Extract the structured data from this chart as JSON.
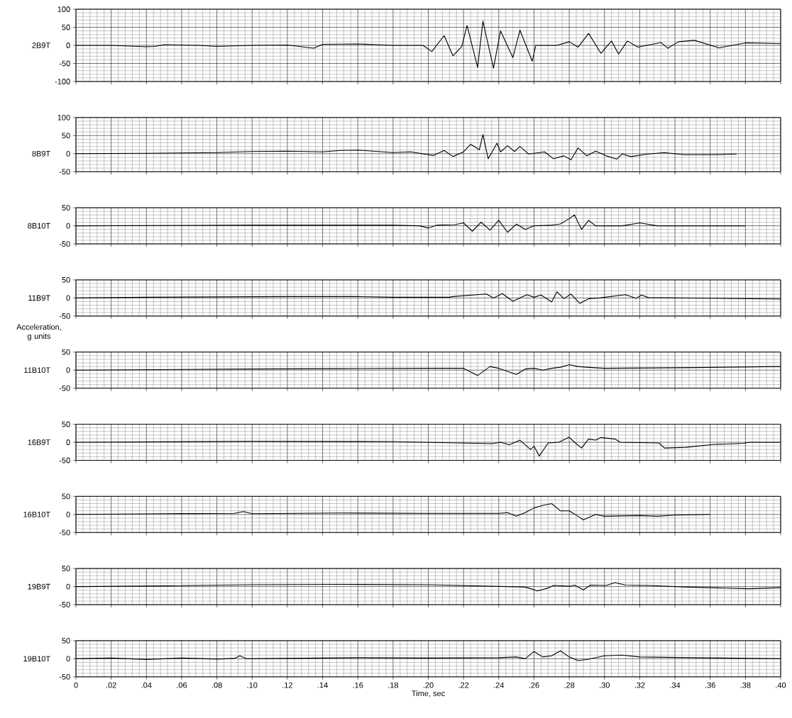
{
  "chart_data": [
    {
      "type": "line",
      "ylabel": "2B9T",
      "color": "#000000",
      "line_style": "solid",
      "grid": true,
      "tick_labels": "y",
      "xlim": [
        0,
        0.4
      ],
      "ylim": [
        -100,
        100
      ],
      "yticks": [
        -100,
        -50,
        0,
        50,
        100
      ],
      "xticks": [
        0,
        0.02,
        0.04,
        0.06,
        0.08,
        0.1,
        0.12,
        0.14,
        0.16,
        0.18,
        0.2,
        0.22,
        0.24,
        0.26,
        0.28,
        0.3,
        0.32,
        0.34,
        0.36,
        0.38,
        0.4
      ],
      "x": [
        0,
        0.02,
        0.04,
        0.045,
        0.05,
        0.07,
        0.08,
        0.1,
        0.12,
        0.135,
        0.14,
        0.16,
        0.18,
        0.197,
        0.202,
        0.209,
        0.214,
        0.219,
        0.222,
        0.228,
        0.231,
        0.237,
        0.241,
        0.248,
        0.252,
        0.259,
        0.261,
        0.273,
        0.28,
        0.285,
        0.291,
        0.298,
        0.304,
        0.308,
        0.313,
        0.319,
        0.332,
        0.336,
        0.342,
        0.351,
        0.365,
        0.38,
        0.4
      ],
      "values": [
        0,
        0,
        -4,
        -3,
        2,
        0,
        -3,
        0,
        1,
        -8,
        3,
        4,
        0,
        0,
        -17,
        27,
        -29,
        -3,
        55,
        -61,
        67,
        -63,
        40,
        -34,
        42,
        -44,
        0,
        0,
        10,
        -5,
        33,
        -22,
        12,
        -24,
        12,
        -5,
        8,
        -8,
        10,
        14,
        -7,
        7,
        5
      ]
    },
    {
      "type": "line",
      "ylabel": "8B9T",
      "color": "#000000",
      "line_style": "solid",
      "grid": true,
      "tick_labels": "y",
      "xlim": [
        0,
        0.4
      ],
      "ylim": [
        -50,
        100
      ],
      "yticks": [
        -50,
        0,
        50,
        100
      ],
      "xticks": [
        0,
        0.02,
        0.04,
        0.06,
        0.08,
        0.1,
        0.12,
        0.14,
        0.16,
        0.18,
        0.2,
        0.22,
        0.24,
        0.26,
        0.28,
        0.3,
        0.32,
        0.34,
        0.36,
        0.38,
        0.4
      ],
      "x": [
        0,
        0.04,
        0.08,
        0.1,
        0.12,
        0.14,
        0.15,
        0.16,
        0.18,
        0.19,
        0.203,
        0.209,
        0.214,
        0.22,
        0.224,
        0.229,
        0.231,
        0.234,
        0.239,
        0.241,
        0.245,
        0.249,
        0.252,
        0.257,
        0.266,
        0.271,
        0.277,
        0.281,
        0.285,
        0.29,
        0.295,
        0.301,
        0.307,
        0.31,
        0.315,
        0.325,
        0.334,
        0.345,
        0.362,
        0.375
      ],
      "values": [
        0,
        1,
        3,
        6,
        7,
        5,
        9,
        10,
        3,
        5,
        -5,
        9,
        -8,
        5,
        26,
        11,
        53,
        -14,
        29,
        5,
        22,
        6,
        20,
        -1,
        5,
        -14,
        -6,
        -17,
        16,
        -6,
        7,
        -6,
        -15,
        -1,
        -8,
        -1,
        3,
        -3,
        -3,
        -1
      ]
    },
    {
      "type": "line",
      "ylabel": "8B10T",
      "color": "#000000",
      "line_style": "solid",
      "grid": true,
      "tick_labels": "y",
      "xlim": [
        0,
        0.4
      ],
      "ylim": [
        -50,
        50
      ],
      "yticks": [
        -50,
        0,
        50
      ],
      "xticks": [
        0,
        0.02,
        0.04,
        0.06,
        0.08,
        0.1,
        0.12,
        0.14,
        0.16,
        0.18,
        0.2,
        0.22,
        0.24,
        0.26,
        0.28,
        0.3,
        0.32,
        0.34,
        0.36,
        0.38,
        0.4
      ],
      "x": [
        0,
        0.1,
        0.18,
        0.195,
        0.2,
        0.205,
        0.215,
        0.22,
        0.225,
        0.23,
        0.235,
        0.24,
        0.245,
        0.25,
        0.255,
        0.26,
        0.27,
        0.275,
        0.28,
        0.283,
        0.287,
        0.291,
        0.295,
        0.31,
        0.32,
        0.33,
        0.38
      ],
      "values": [
        0,
        2,
        2,
        0,
        -6,
        2,
        3,
        8,
        -15,
        10,
        -12,
        15,
        -18,
        5,
        -10,
        0,
        2,
        5,
        20,
        30,
        -10,
        15,
        0,
        0,
        8,
        0,
        0
      ]
    },
    {
      "type": "line",
      "ylabel": "11B9T",
      "color": "#000000",
      "line_style": "solid",
      "grid": true,
      "tick_labels": "y",
      "xlim": [
        0,
        0.4
      ],
      "ylim": [
        -50,
        50
      ],
      "yticks": [
        -50,
        0,
        50
      ],
      "annotations": [
        "Acceleration, g units"
      ],
      "xticks": [
        0,
        0.02,
        0.04,
        0.06,
        0.08,
        0.1,
        0.12,
        0.14,
        0.16,
        0.18,
        0.2,
        0.22,
        0.24,
        0.26,
        0.28,
        0.3,
        0.32,
        0.34,
        0.36,
        0.38,
        0.4
      ],
      "x": [
        0,
        0.04,
        0.08,
        0.12,
        0.16,
        0.18,
        0.212,
        0.214,
        0.233,
        0.237,
        0.242,
        0.248,
        0.256,
        0.26,
        0.264,
        0.27,
        0.273,
        0.277,
        0.281,
        0.286,
        0.291,
        0.297,
        0.312,
        0.318,
        0.321,
        0.325,
        0.4
      ],
      "values": [
        0,
        2,
        3,
        4,
        4,
        2,
        2,
        4,
        11,
        0,
        12,
        -9,
        9,
        2,
        8,
        -11,
        17,
        -2,
        11,
        -15,
        -2,
        0,
        9,
        -1,
        8,
        1,
        -3
      ]
    },
    {
      "type": "line",
      "ylabel": "11B10T",
      "color": "#000000",
      "line_style": "solid",
      "grid": true,
      "tick_labels": "y",
      "xlim": [
        0,
        0.4
      ],
      "ylim": [
        -50,
        50
      ],
      "yticks": [
        -50,
        0,
        50
      ],
      "xticks": [
        0,
        0.02,
        0.04,
        0.06,
        0.08,
        0.1,
        0.12,
        0.14,
        0.16,
        0.18,
        0.2,
        0.22,
        0.24,
        0.26,
        0.28,
        0.3,
        0.32,
        0.34,
        0.36,
        0.38,
        0.4
      ],
      "x": [
        0,
        0.1,
        0.15,
        0.2,
        0.22,
        0.228,
        0.235,
        0.24,
        0.25,
        0.255,
        0.26,
        0.265,
        0.27,
        0.275,
        0.28,
        0.285,
        0.29,
        0.3,
        0.35,
        0.4
      ],
      "values": [
        0,
        3,
        4,
        5,
        5,
        -15,
        10,
        5,
        -12,
        3,
        5,
        0,
        5,
        8,
        15,
        10,
        8,
        5,
        7,
        10
      ]
    },
    {
      "type": "line",
      "ylabel": "16B9T",
      "color": "#000000",
      "line_style": "solid",
      "grid": true,
      "tick_labels": "y",
      "xlim": [
        0,
        0.4
      ],
      "ylim": [
        -50,
        50
      ],
      "yticks": [
        -50,
        0,
        50
      ],
      "xticks": [
        0,
        0.02,
        0.04,
        0.06,
        0.08,
        0.1,
        0.12,
        0.14,
        0.16,
        0.18,
        0.2,
        0.22,
        0.24,
        0.26,
        0.28,
        0.3,
        0.32,
        0.34,
        0.36,
        0.38,
        0.4
      ],
      "x": [
        0,
        0.1,
        0.18,
        0.236,
        0.241,
        0.246,
        0.252,
        0.258,
        0.26,
        0.263,
        0.268,
        0.274,
        0.28,
        0.283,
        0.287,
        0.291,
        0.295,
        0.298,
        0.306,
        0.309,
        0.331,
        0.334,
        0.346,
        0.362,
        0.379,
        0.382,
        0.4
      ],
      "values": [
        0,
        3,
        2,
        -4,
        0,
        -7,
        6,
        -20,
        -11,
        -38,
        -2,
        0,
        14,
        0,
        -16,
        9,
        6,
        13,
        9,
        0,
        -2,
        -16,
        -14,
        -6,
        -3,
        0,
        0
      ]
    },
    {
      "type": "line",
      "ylabel": "16B10T",
      "color": "#000000",
      "line_style": "solid",
      "grid": true,
      "tick_labels": "y",
      "xlim": [
        0,
        0.4
      ],
      "ylim": [
        -50,
        50
      ],
      "yticks": [
        -50,
        0,
        50
      ],
      "xticks": [
        0,
        0.02,
        0.04,
        0.06,
        0.08,
        0.1,
        0.12,
        0.14,
        0.16,
        0.18,
        0.2,
        0.22,
        0.24,
        0.26,
        0.28,
        0.3,
        0.32,
        0.34,
        0.36,
        0.38,
        0.4
      ],
      "x": [
        0,
        0.05,
        0.09,
        0.095,
        0.1,
        0.15,
        0.2,
        0.24,
        0.245,
        0.25,
        0.255,
        0.26,
        0.265,
        0.27,
        0.275,
        0.28,
        0.285,
        0.288,
        0.295,
        0.3,
        0.32,
        0.33,
        0.34,
        0.36
      ],
      "values": [
        0,
        2,
        3,
        8,
        2,
        4,
        3,
        3,
        5,
        -5,
        5,
        18,
        25,
        30,
        10,
        10,
        -5,
        -15,
        0,
        -5,
        -3,
        -5,
        -2,
        0
      ]
    },
    {
      "type": "line",
      "ylabel": "19B9T",
      "color": "#000000",
      "line_style": "solid",
      "grid": true,
      "tick_labels": "y",
      "xlim": [
        0,
        0.4
      ],
      "ylim": [
        -50,
        50
      ],
      "yticks": [
        -50,
        0,
        50
      ],
      "xticks": [
        0,
        0.02,
        0.04,
        0.06,
        0.08,
        0.1,
        0.12,
        0.14,
        0.16,
        0.18,
        0.2,
        0.22,
        0.24,
        0.26,
        0.28,
        0.3,
        0.32,
        0.34,
        0.36,
        0.38,
        0.4
      ],
      "x": [
        0,
        0.05,
        0.1,
        0.15,
        0.2,
        0.254,
        0.257,
        0.262,
        0.268,
        0.271,
        0.281,
        0.283,
        0.288,
        0.292,
        0.301,
        0.306,
        0.312,
        0.325,
        0.345,
        0.382,
        0.4
      ],
      "values": [
        0,
        2,
        5,
        6,
        5,
        -1,
        -4,
        -12,
        -4,
        3,
        1,
        4,
        -9,
        4,
        3,
        11,
        4,
        3,
        -1,
        -6,
        -3
      ]
    },
    {
      "type": "line",
      "ylabel": "19B10T",
      "xlabel": "Time, sec",
      "color": "#000000",
      "line_style": "solid",
      "grid": true,
      "xlim": [
        0,
        0.4
      ],
      "ylim": [
        -50,
        50
      ],
      "yticks": [
        -50,
        0,
        50
      ],
      "xticks": [
        0,
        {
          "value": 0.02,
          "label": ".02"
        },
        {
          "value": 0.04,
          "label": ".04"
        },
        {
          "value": 0.06,
          "label": ".06"
        },
        {
          "value": 0.08,
          "label": ".08"
        },
        {
          "value": 0.1,
          "label": ".10"
        },
        {
          "value": 0.12,
          "label": ".12"
        },
        {
          "value": 0.14,
          "label": ".14"
        },
        {
          "value": 0.16,
          "label": ".16"
        },
        {
          "value": 0.18,
          "label": ".18"
        },
        {
          "value": 0.2,
          "label": ".20"
        },
        {
          "value": 0.22,
          "label": ".22"
        },
        {
          "value": 0.24,
          "label": ".24"
        },
        {
          "value": 0.26,
          "label": ".26"
        },
        {
          "value": 0.28,
          "label": ".28"
        },
        {
          "value": 0.3,
          "label": ".30"
        },
        {
          "value": 0.32,
          "label": ".32"
        },
        {
          "value": 0.34,
          "label": ".34"
        },
        {
          "value": 0.36,
          "label": ".36"
        },
        {
          "value": 0.38,
          "label": ".38"
        },
        {
          "value": 0.4,
          "label": ".40"
        }
      ],
      "x": [
        0,
        0.02,
        0.04,
        0.06,
        0.08,
        0.09,
        0.093,
        0.097,
        0.12,
        0.16,
        0.2,
        0.24,
        0.25,
        0.255,
        0.26,
        0.265,
        0.27,
        0.275,
        0.28,
        0.285,
        0.29,
        0.3,
        0.31,
        0.32,
        0.35,
        0.4
      ],
      "values": [
        0,
        2,
        -2,
        2,
        -1,
        1,
        8,
        0,
        1,
        3,
        2,
        3,
        5,
        0,
        20,
        5,
        8,
        22,
        5,
        -5,
        -2,
        8,
        10,
        5,
        3,
        0
      ]
    }
  ]
}
